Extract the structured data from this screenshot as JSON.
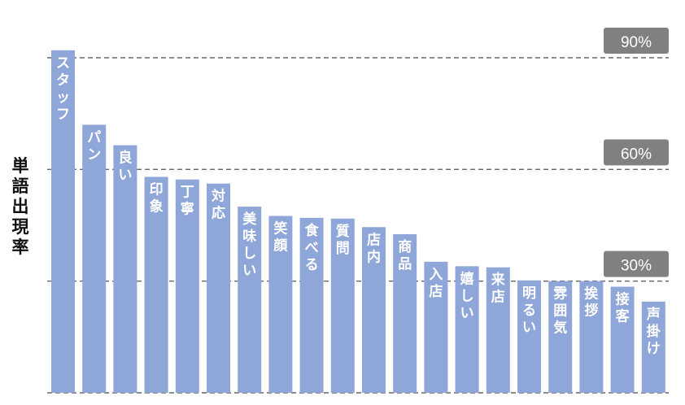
{
  "chart_data": {
    "type": "bar",
    "ylabel": "単語出現率",
    "ylim": [
      0,
      90
    ],
    "gridlines": [
      90,
      60,
      30
    ],
    "gridline_labels": [
      "90%",
      "60%",
      "30%"
    ],
    "categories": [
      "スタッフ",
      "パン",
      "良い",
      "印象",
      "丁寧",
      "対応",
      "美味しい",
      "笑顔",
      "食べる",
      "質問",
      "店内",
      "商品",
      "入店",
      "嬉しい",
      "来店",
      "明るい",
      "雰囲気",
      "挨拶",
      "接客",
      "声掛け"
    ],
    "values": [
      92,
      72,
      66.5,
      58,
      57.3,
      56.2,
      50,
      47.5,
      47,
      46.8,
      44.5,
      42.6,
      35.2,
      34,
      33.7,
      30.2,
      30,
      30,
      28.5,
      24.5
    ],
    "colors": {
      "bar": "#8fa6d9",
      "bar_label": "#ffffff",
      "grid": "#666666",
      "badge_bg": "#808080",
      "badge_text": "#ffffff"
    }
  }
}
